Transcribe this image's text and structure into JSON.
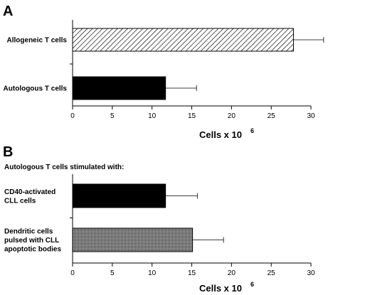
{
  "chart_data": [
    {
      "type": "bar",
      "orientation": "horizontal",
      "panel": "A",
      "subtitle": "",
      "categories": [
        "Allogeneic T cells",
        "Autologous T cells"
      ],
      "values": [
        27.8,
        11.7
      ],
      "errors": [
        3.8,
        3.9
      ],
      "fills": [
        "hatch",
        "solid"
      ],
      "xlabel": "Cells x 10",
      "xlabel_exponent": "6",
      "xlim": [
        0,
        30
      ],
      "xticks": [
        "0",
        "5",
        "10",
        "15",
        "20",
        "25",
        "30"
      ],
      "grid": false
    },
    {
      "type": "bar",
      "orientation": "horizontal",
      "panel": "B",
      "subtitle": "Autologous T cells stimulated with:",
      "categories": [
        [
          "CD40-activated",
          "CLL cells"
        ],
        [
          "Dendritic cells",
          "pulsed with CLL",
          "apoptotic bodies"
        ]
      ],
      "values": [
        11.7,
        15.1
      ],
      "errors": [
        4.0,
        3.9
      ],
      "fills": [
        "solid",
        "dots"
      ],
      "xlabel": "Cells x 10",
      "xlabel_exponent": "6",
      "xlim": [
        0,
        30
      ],
      "xticks": [
        "0",
        "5",
        "10",
        "15",
        "20",
        "25",
        "30"
      ],
      "grid": false
    }
  ]
}
